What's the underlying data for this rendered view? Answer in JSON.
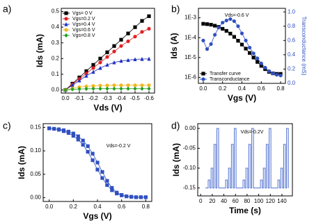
{
  "chart_data": [
    {
      "type": "line",
      "label": "a)",
      "xlabel": "Vds (V)",
      "ylabel": "Ids (mA)",
      "legend": "upper left",
      "x": [
        0,
        -0.05,
        -0.1,
        -0.15,
        -0.2,
        -0.25,
        -0.3,
        -0.35,
        -0.4,
        -0.45,
        -0.5,
        -0.55,
        -0.6
      ],
      "xlim": [
        0.03,
        -0.64
      ],
      "xticks": [
        {
          "value": 0,
          "label": "0.0"
        },
        -0.1,
        -0.2,
        -0.3,
        -0.4,
        -0.5,
        -0.6
      ],
      "ylim": [
        -0.02,
        0.52
      ],
      "yticks": [
        {
          "value": 0,
          "label": "0.0"
        },
        0.1,
        0.2,
        0.3,
        0.4,
        0.5
      ],
      "series": [
        {
          "name": "Vgs=  0 V",
          "color": "#000000",
          "marker": "square",
          "values": [
            0,
            0.04,
            0.08,
            0.12,
            0.16,
            0.2,
            0.24,
            0.28,
            0.32,
            0.36,
            0.4,
            0.44,
            0.47
          ]
        },
        {
          "name": "Vgs=0.2 V",
          "color": "#e02020",
          "marker": "circle",
          "values": [
            0,
            0.035,
            0.07,
            0.105,
            0.14,
            0.175,
            0.21,
            0.245,
            0.28,
            0.31,
            0.34,
            0.37,
            0.39
          ]
        },
        {
          "name": "Vgs=0.4 V",
          "color": "#2030c0",
          "marker": "triangle",
          "values": [
            0,
            0.03,
            0.06,
            0.09,
            0.115,
            0.14,
            0.16,
            0.175,
            0.185,
            0.19,
            0.195,
            0.197,
            0.198
          ]
        },
        {
          "name": "Vgs=0.6 V",
          "color": "#f0b820",
          "marker": "circle",
          "values": [
            0,
            0.01,
            0.018,
            0.023,
            0.026,
            0.028,
            0.029,
            0.03,
            0.03,
            0.03,
            0.03,
            0.03,
            0.03
          ]
        },
        {
          "name": "Vgs=0.8 V",
          "color": "#20a020",
          "marker": "diamond",
          "values": [
            0,
            0.004,
            0.006,
            0.007,
            0.008,
            0.008,
            0.008,
            0.008,
            0.008,
            0.008,
            0.008,
            0.008,
            0.008
          ]
        }
      ]
    },
    {
      "type": "line",
      "label": "b)",
      "xlabel": "Vgs (V)",
      "ylabel": "Ids (A)",
      "y2label": "Transconductance (mS)",
      "annotation": "Vds=-0.6 V",
      "legend": "lower left",
      "ylog": true,
      "x": [
        0,
        0.04,
        0.08,
        0.12,
        0.16,
        0.2,
        0.24,
        0.28,
        0.32,
        0.36,
        0.4,
        0.44,
        0.48,
        0.52,
        0.56,
        0.6,
        0.64,
        0.68,
        0.72,
        0.76,
        0.8
      ],
      "xlim": [
        -0.05,
        0.85
      ],
      "xticks": [
        {
          "value": 0,
          "label": "0.0"
        },
        0.2,
        0.4,
        0.6,
        0.8
      ],
      "ylim": [
        5e-07,
        0.003
      ],
      "yticks": [
        {
          "value": 1e-06,
          "label": "1E-6"
        },
        {
          "value": 1e-05,
          "label": "1E-5"
        },
        {
          "value": 0.0001,
          "label": "1E-4"
        },
        {
          "value": 0.001,
          "label": "1E-3"
        }
      ],
      "y2lim": [
        0,
        1.05
      ],
      "y2ticks": [
        {
          "value": 0,
          "label": "0.0"
        },
        0.2,
        0.4,
        0.6,
        0.8,
        {
          "value": 1,
          "label": "1.0"
        }
      ],
      "series": [
        {
          "name": "Transfer curve",
          "color": "#000000",
          "marker": "square",
          "values": [
            0.0005,
            0.00048,
            0.00045,
            0.0004,
            0.00035,
            0.00028,
            0.00022,
            0.00016,
            0.00011,
            7e-05,
            4.5e-05,
            2.8e-05,
            1.7e-05,
            1e-05,
            6e-06,
            3.8e-06,
            2.6e-06,
            1.9e-06,
            1.6e-06,
            1.5e-06,
            1.5e-06
          ]
        },
        {
          "name": "Transconductance",
          "color": "#3050c0",
          "marker": "circle",
          "axis": "y2",
          "values": [
            0.6,
            0.48,
            0.55,
            0.68,
            0.78,
            0.85,
            0.88,
            0.9,
            0.87,
            0.8,
            0.7,
            0.6,
            0.5,
            0.42,
            0.35,
            0.28,
            0.22,
            0.17,
            0.14,
            0.12,
            0.11
          ]
        }
      ]
    },
    {
      "type": "line",
      "label": "c)",
      "xlabel": "Vgs (V)",
      "ylabel": "Ids (mA)",
      "annotation": "Vds=-0.2 V",
      "x": [
        0,
        0.04,
        0.08,
        0.12,
        0.16,
        0.2,
        0.24,
        0.28,
        0.32,
        0.36,
        0.4,
        0.44,
        0.48,
        0.52,
        0.56,
        0.6,
        0.64,
        0.68,
        0.72,
        0.76,
        0.8
      ],
      "xlim": [
        -0.05,
        0.85
      ],
      "xticks": [
        {
          "value": 0,
          "label": "0.0"
        },
        0.2,
        0.4,
        0.6,
        0.8
      ],
      "ylim": [
        -0.008,
        0.158
      ],
      "yticks": [
        {
          "value": 0,
          "label": "0.00"
        },
        0.05,
        {
          "value": 0.1,
          "label": "0.10"
        },
        0.15
      ],
      "series": [
        {
          "color": "#3050c0",
          "marker": "square",
          "values": [
            0.148,
            0.147,
            0.145,
            0.142,
            0.138,
            0.132,
            0.124,
            0.113,
            0.098,
            0.08,
            0.06,
            0.042,
            0.027,
            0.016,
            0.009,
            0.005,
            0.003,
            0.002,
            0.001,
            0.001,
            0.001
          ]
        },
        {
          "color": "#3050c0",
          "marker": "square",
          "values": [
            0.148,
            0.147,
            0.146,
            0.144,
            0.141,
            0.137,
            0.131,
            0.122,
            0.11,
            0.094,
            0.075,
            0.055,
            0.036,
            0.021,
            0.011,
            0.006,
            0.003,
            0.002,
            0.001,
            0.001,
            0.001
          ]
        }
      ]
    },
    {
      "type": "line",
      "label": "d)",
      "xlabel": "Time (s)",
      "ylabel": "Ids (mA)",
      "annotation": "Vds=-0.2V",
      "x": [
        8,
        13,
        13,
        16,
        16,
        18,
        18,
        21,
        21,
        23,
        23,
        26,
        26,
        28,
        28,
        31,
        31,
        43,
        43,
        46,
        46,
        48,
        48,
        51,
        51,
        53,
        53,
        56,
        56,
        58,
        58,
        61,
        61,
        73,
        73,
        76,
        76,
        78,
        78,
        81,
        81,
        83,
        83,
        86,
        86,
        88,
        88,
        91,
        91,
        103,
        103,
        106,
        106,
        108,
        108,
        111,
        111,
        113,
        113,
        116,
        116,
        118,
        118,
        121,
        121,
        133,
        133,
        136,
        136,
        138,
        138,
        141,
        141,
        143,
        143,
        146,
        146,
        148,
        148,
        151,
        151
      ],
      "xlim": [
        -5,
        158
      ],
      "xticks": [
        0,
        20,
        40,
        60,
        80,
        100,
        120,
        140
      ],
      "ylim": [
        -0.17,
        0.012
      ],
      "yticks": [
        -0.15,
        {
          "value": -0.1,
          "label": "-0.10"
        },
        -0.05,
        {
          "value": 0,
          "label": "0.00"
        }
      ],
      "series": [
        {
          "color": "#5070d0",
          "marker": "none",
          "values": [
            -0.15,
            -0.15,
            -0.13,
            -0.13,
            -0.15,
            -0.15,
            -0.1,
            -0.1,
            -0.15,
            -0.15,
            -0.04,
            -0.04,
            -0.15,
            -0.15,
            0,
            0,
            -0.15,
            -0.15,
            -0.13,
            -0.13,
            -0.15,
            -0.15,
            -0.1,
            -0.1,
            -0.15,
            -0.15,
            -0.04,
            -0.04,
            -0.15,
            -0.15,
            0,
            0,
            -0.15,
            -0.15,
            -0.13,
            -0.13,
            -0.15,
            -0.15,
            -0.1,
            -0.1,
            -0.15,
            -0.15,
            -0.04,
            -0.04,
            -0.15,
            -0.15,
            0,
            0,
            -0.15,
            -0.15,
            -0.13,
            -0.13,
            -0.15,
            -0.15,
            -0.1,
            -0.1,
            -0.15,
            -0.15,
            -0.04,
            -0.04,
            -0.15,
            -0.15,
            0,
            0,
            -0.15,
            -0.15,
            -0.13,
            -0.13,
            -0.15,
            -0.15,
            -0.1,
            -0.1,
            -0.15,
            -0.15,
            -0.04,
            -0.04,
            -0.15,
            -0.15,
            0,
            0,
            -0.15
          ]
        }
      ]
    }
  ]
}
